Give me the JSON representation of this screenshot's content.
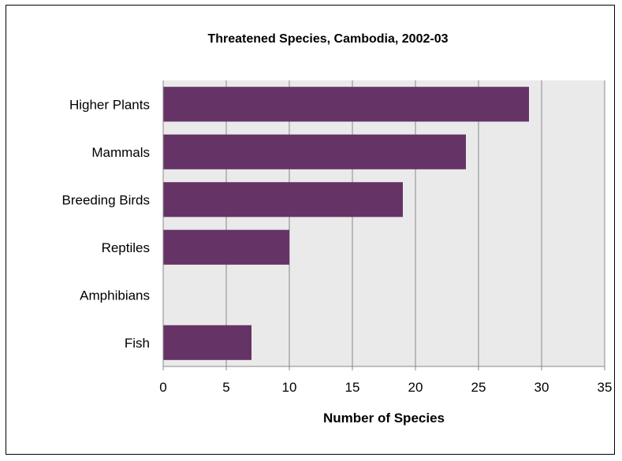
{
  "chart_data": {
    "type": "bar",
    "orientation": "horizontal",
    "title": "Threatened Species, Cambodia, 2002-03",
    "xlabel": "Number of Species",
    "ylabel": "",
    "categories": [
      "Higher Plants",
      "Mammals",
      "Breeding Birds",
      "Reptiles",
      "Amphibians",
      "Fish"
    ],
    "values": [
      29,
      24,
      19,
      10,
      0,
      7
    ],
    "xlim": [
      0,
      35
    ],
    "x_ticks": [
      0,
      5,
      10,
      15,
      20,
      25,
      30,
      35
    ],
    "grid": true,
    "legend": "none",
    "colors": {
      "bar": "#663366",
      "plot_background": "#eaeaea",
      "gridline": "#888888"
    }
  }
}
